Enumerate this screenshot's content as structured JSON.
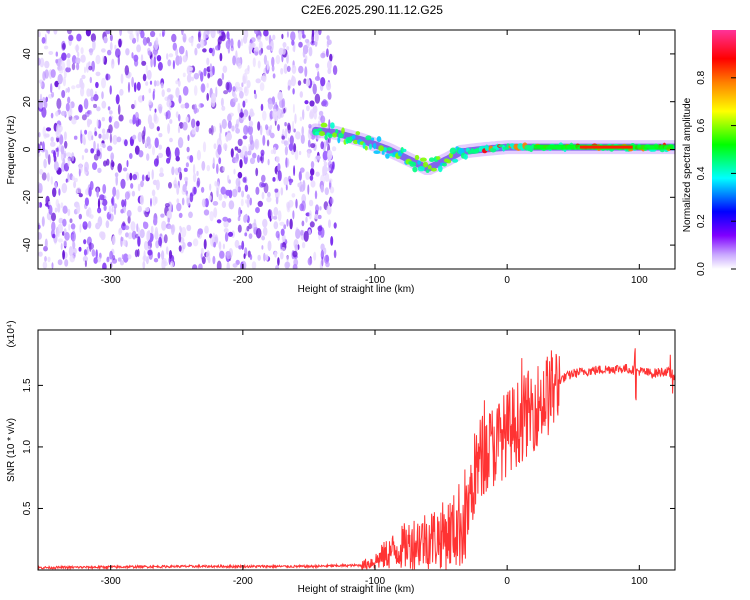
{
  "title": "C2E6.2025.290.11.12.G25",
  "chart_data": [
    {
      "type": "heatmap",
      "name": "spectrogram",
      "xlabel": "Height of straight line (km)",
      "ylabel": "Frequency (Hz)",
      "xlim": [
        -355,
        127
      ],
      "ylim": [
        -50,
        50
      ],
      "xticks": [
        -300,
        -200,
        -100,
        0,
        100
      ],
      "xtick_labels": [
        "-300",
        "-200",
        "-100",
        "0",
        "100"
      ],
      "yticks": [
        -40,
        -20,
        0,
        20,
        40
      ],
      "ytick_labels": [
        "-40",
        "-20",
        "0",
        "20",
        "40"
      ],
      "noise_region_x": [
        -355,
        -130
      ],
      "signal_ridge": {
        "x": [
          -145,
          -130,
          -110,
          -90,
          -75,
          -60,
          -45,
          -35,
          -20,
          0,
          20,
          40,
          60,
          80,
          100,
          127
        ],
        "freq": [
          8,
          7,
          4,
          0,
          -4,
          -8,
          -4,
          -1,
          0,
          1,
          1,
          1,
          1,
          1,
          1,
          1
        ]
      },
      "colorbar": {
        "label": "Normalized spectral amplitude",
        "range": [
          0.0,
          1.0
        ],
        "ticks": [
          0.0,
          0.2,
          0.4,
          0.6,
          0.8
        ],
        "tick_labels": [
          "0.0",
          "0.2",
          "0.4",
          "0.6",
          "0.8"
        ],
        "colors": [
          "#ffffff",
          "#8000ff",
          "#0000ff",
          "#00ffff",
          "#00ff00",
          "#ffff00",
          "#ff8000",
          "#ff0000",
          "#ff0080"
        ]
      }
    },
    {
      "type": "line",
      "name": "snr",
      "xlabel": "Height of straight line (km)",
      "ylabel": "SNR (10 * v/v)",
      "y_multiplier": "(x10⁴)",
      "xlim": [
        -355,
        127
      ],
      "ylim": [
        0,
        1.95
      ],
      "xticks": [
        -300,
        -200,
        -100,
        0,
        100
      ],
      "xtick_labels": [
        "-300",
        "-200",
        "-100",
        "0",
        "100"
      ],
      "yticks": [
        0.5,
        1.0,
        1.5
      ],
      "ytick_labels": [
        "0.5",
        "1.0",
        "1.5"
      ],
      "color": "#ff3333",
      "series": [
        {
          "name": "SNR",
          "x": [
            -355,
            -300,
            -250,
            -200,
            -150,
            -110,
            -100,
            -90,
            -80,
            -70,
            -60,
            -50,
            -40,
            -30,
            -25,
            -20,
            -15,
            -10,
            -5,
            0,
            10,
            20,
            30,
            40,
            50,
            60,
            70,
            80,
            90,
            100,
            110,
            120,
            127
          ],
          "y": [
            0.02,
            0.025,
            0.03,
            0.03,
            0.03,
            0.04,
            0.08,
            0.15,
            0.2,
            0.25,
            0.28,
            0.3,
            0.35,
            0.5,
            0.8,
            0.95,
            1.0,
            1.05,
            1.1,
            1.15,
            1.25,
            1.35,
            1.45,
            1.55,
            1.6,
            1.62,
            1.63,
            1.64,
            1.64,
            1.62,
            1.6,
            1.62,
            1.58
          ]
        }
      ]
    }
  ]
}
